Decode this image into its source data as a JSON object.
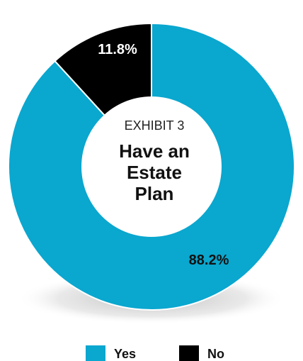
{
  "chart_data": {
    "type": "pie",
    "donut": true,
    "center_label": {
      "exhibit": "EXHIBIT 3",
      "title_lines": [
        "Have an",
        "Estate",
        "Plan"
      ]
    },
    "slices": [
      {
        "label": "Yes",
        "value": 88.2,
        "display": "88.2%",
        "color": "#0aa7cf"
      },
      {
        "label": "No",
        "value": 11.8,
        "display": "11.8%",
        "color": "#000000"
      }
    ],
    "legend": {
      "placement": "bottom",
      "items": [
        {
          "label": "Yes",
          "color": "#0aa7cf"
        },
        {
          "label": "No",
          "color": "#000000"
        }
      ]
    },
    "styling": {
      "divider_color": "#ffffff",
      "shadow_color": "#c8c8c8"
    }
  }
}
